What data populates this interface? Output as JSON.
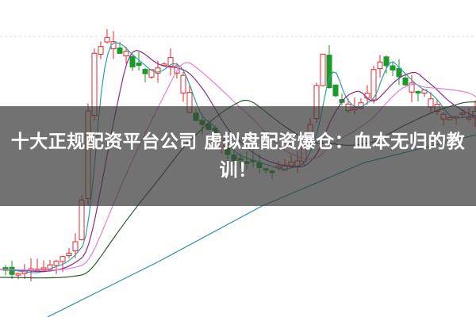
{
  "article": {
    "title": "十大正规配资平台公司 虚拟盘配资爆仓：血本无归的教训！"
  },
  "colors": {
    "up": "#e8262b",
    "down": "#1a9a2a",
    "overlay": "#3c3c3c"
  }
}
